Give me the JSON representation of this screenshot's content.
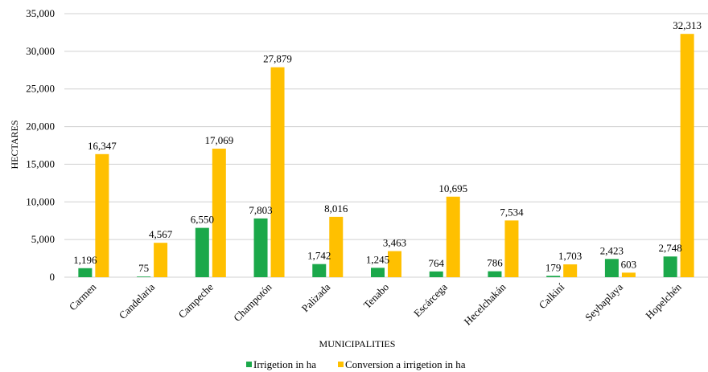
{
  "chart_data": {
    "type": "bar",
    "title": "",
    "xlabel": "MUNICIPALITIES",
    "ylabel": "HECTARES",
    "ylim": [
      0,
      35000
    ],
    "yticks": [
      0,
      5000,
      10000,
      15000,
      20000,
      25000,
      30000,
      35000
    ],
    "ytick_labels": [
      "0",
      "5,000",
      "10,000",
      "15,000",
      "20,000",
      "25,000",
      "30,000",
      "35,000"
    ],
    "grid": true,
    "legend_position": "bottom",
    "categories": [
      "Carmen",
      "Candelaria",
      "Campeche",
      "Champotón",
      "Palizada",
      "Tenabo",
      "Escárcega",
      "Hecelchakán",
      "Calkiní",
      "Seybaplaya",
      "Hopelchén"
    ],
    "series": [
      {
        "name": "Irrigetion in ha",
        "color": "#1BA84A",
        "values": [
          1196,
          75,
          6550,
          7803,
          1742,
          1245,
          764,
          786,
          179,
          2423,
          2748
        ],
        "labels": [
          "1,196",
          "75",
          "6,550",
          "7,803",
          "1,742",
          "1,245",
          "764",
          "786",
          "179",
          "2,423",
          "2,748"
        ]
      },
      {
        "name": "Conversion a irrigetion in ha",
        "color": "#FFC000",
        "values": [
          16347,
          4567,
          17069,
          27879,
          8016,
          3463,
          10695,
          7534,
          1703,
          603,
          32313
        ],
        "labels": [
          "16,347",
          "4,567",
          "17,069",
          "27,879",
          "8,016",
          "3,463",
          "10,695",
          "7,534",
          "1,703",
          "603",
          "32,313"
        ]
      }
    ]
  }
}
